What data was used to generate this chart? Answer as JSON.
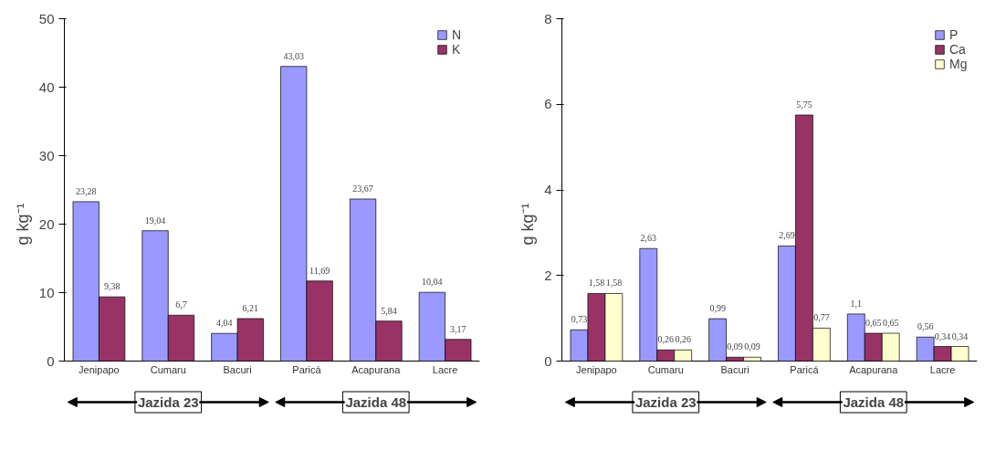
{
  "chart_data": [
    {
      "type": "bar",
      "ylabel": "g kg⁻¹",
      "categories": [
        "Jenipapo",
        "Cumaru",
        "Bacuri",
        "Paricá",
        "Acapurana",
        "Lacre"
      ],
      "series": [
        {
          "name": "N",
          "color": "#9999ff",
          "values": [
            23.28,
            19.04,
            4.04,
            43.03,
            23.67,
            10.04
          ],
          "value_labels": [
            "23,28",
            "19,04",
            "4,04",
            "43,03",
            "23,67",
            "10,04"
          ]
        },
        {
          "name": "K",
          "color": "#993366",
          "values": [
            9.38,
            6.7,
            6.21,
            11.69,
            5.84,
            3.17
          ],
          "value_labels": [
            "9,38",
            "6,7",
            "6,21",
            "11,69",
            "5,84",
            "3,17"
          ]
        }
      ],
      "ylim": [
        0,
        50
      ],
      "yticks": [
        0,
        10,
        20,
        30,
        40,
        50
      ],
      "legend": "top right",
      "annotations": [
        "Jazida 23",
        "Jazida 48"
      ]
    },
    {
      "type": "bar",
      "ylabel": "g kg⁻¹",
      "categories": [
        "Jenipapo",
        "Cumaru",
        "Bacuri",
        "Paricá",
        "Acapurana",
        "Lacre"
      ],
      "series": [
        {
          "name": "P",
          "color": "#9999ff",
          "values": [
            0.73,
            2.63,
            0.99,
            2.69,
            1.1,
            0.56
          ],
          "value_labels": [
            "0,73",
            "2,63",
            "0,99",
            "2,69",
            "1,1",
            "0,56"
          ]
        },
        {
          "name": "Ca",
          "color": "#993366",
          "values": [
            1.58,
            0.26,
            0.09,
            5.75,
            0.65,
            0.34
          ],
          "value_labels": [
            "1,58",
            "0,26",
            "0,09",
            "5,75",
            "0,65",
            "0,34"
          ]
        },
        {
          "name": "Mg",
          "color": "#ffffcc",
          "values": [
            1.58,
            0.26,
            0.09,
            0.77,
            0.65,
            0.34
          ],
          "value_labels": [
            "1,58",
            "0,26",
            "0,09",
            "0,77",
            "0,65",
            "0,34"
          ]
        }
      ],
      "ylim": [
        0,
        8
      ],
      "yticks": [
        0,
        2,
        4,
        6,
        8
      ],
      "legend": "top right",
      "annotations": [
        "Jazida 23",
        "Jazida 48"
      ]
    }
  ]
}
